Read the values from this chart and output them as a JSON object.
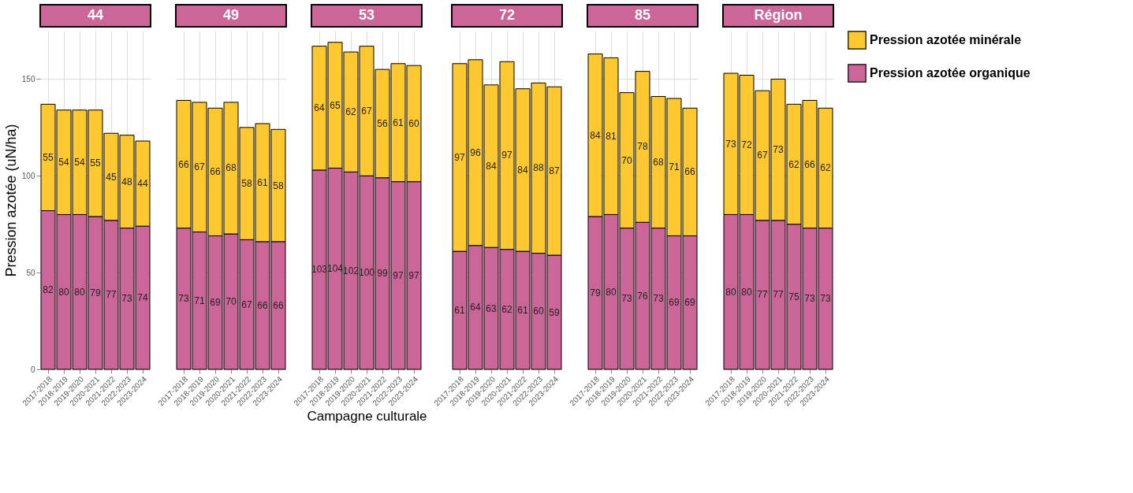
{
  "chart_data": [
    {
      "type": "bar",
      "title": "44",
      "ylabel": "Pression azotée (uN/ha)",
      "categories": [
        "2017-2018",
        "2018-2019",
        "2019-2020",
        "2020-2021",
        "2021-2022",
        "2022-2023",
        "2023-2024"
      ],
      "stacked": true,
      "data_labels": true,
      "ylim": [
        0,
        175
      ],
      "yticks": [
        0,
        50,
        100,
        150
      ],
      "grid": true,
      "legend": false,
      "series": [
        {
          "color": "#cc6699",
          "values": [
            82,
            80,
            80,
            79,
            77,
            73,
            74
          ]
        },
        {
          "color": "#fdc830",
          "values": [
            55,
            54,
            54,
            55,
            45,
            48,
            44
          ]
        }
      ]
    },
    {
      "type": "bar",
      "title": "49",
      "categories": [
        "2017-2018",
        "2018-2019",
        "2019-2020",
        "2020-2021",
        "2021-2022",
        "2022-2023",
        "2023-2024"
      ],
      "stacked": true,
      "data_labels": true,
      "ylim": [
        0,
        175
      ],
      "yticks": [
        0,
        50,
        100,
        150
      ],
      "grid": true,
      "legend": false,
      "tick_labels": "x",
      "series": [
        {
          "color": "#cc6699",
          "values": [
            73,
            71,
            69,
            70,
            67,
            66,
            66
          ]
        },
        {
          "color": "#fdc830",
          "values": [
            66,
            67,
            66,
            68,
            58,
            61,
            58
          ]
        }
      ]
    },
    {
      "type": "bar",
      "title": "53",
      "xlabel": "Campagne culturale",
      "categories": [
        "2017-2018",
        "2018-2019",
        "2019-2020",
        "2020-2021",
        "2021-2022",
        "2022-2023",
        "2023-2024"
      ],
      "stacked": true,
      "data_labels": true,
      "ylim": [
        0,
        175
      ],
      "yticks": [
        0,
        50,
        100,
        150
      ],
      "grid": true,
      "legend": false,
      "tick_labels": "x",
      "series": [
        {
          "color": "#cc6699",
          "values": [
            103,
            104,
            102,
            100,
            99,
            97,
            97
          ]
        },
        {
          "color": "#fdc830",
          "values": [
            64,
            65,
            62,
            67,
            56,
            61,
            60
          ]
        }
      ]
    },
    {
      "type": "bar",
      "title": "72",
      "categories": [
        "2017-2018",
        "2018-2019",
        "2019-2020",
        "2020-2021",
        "2021-2022",
        "2022-2023",
        "2023-2024"
      ],
      "stacked": true,
      "data_labels": true,
      "ylim": [
        0,
        175
      ],
      "yticks": [
        0,
        50,
        100,
        150
      ],
      "grid": true,
      "legend": false,
      "tick_labels": "x",
      "series": [
        {
          "color": "#cc6699",
          "values": [
            61,
            64,
            63,
            62,
            61,
            60,
            59
          ]
        },
        {
          "color": "#fdc830",
          "values": [
            97,
            96,
            84,
            97,
            84,
            88,
            87
          ]
        }
      ]
    },
    {
      "type": "bar",
      "title": "85",
      "categories": [
        "2017-2018",
        "2018-2019",
        "2019-2020",
        "2020-2021",
        "2021-2022",
        "2022-2023",
        "2023-2024"
      ],
      "stacked": true,
      "data_labels": true,
      "ylim": [
        0,
        175
      ],
      "yticks": [
        0,
        50,
        100,
        150
      ],
      "grid": true,
      "legend": false,
      "tick_labels": "x",
      "series": [
        {
          "color": "#cc6699",
          "values": [
            79,
            80,
            73,
            76,
            73,
            69,
            69
          ]
        },
        {
          "color": "#fdc830",
          "values": [
            84,
            81,
            70,
            78,
            68,
            71,
            66
          ]
        }
      ]
    },
    {
      "type": "bar",
      "title": "Région",
      "categories": [
        "2017-2018",
        "2018-2019",
        "2019-2020",
        "2020-2021",
        "2021-2022",
        "2022-2023",
        "2023-2024"
      ],
      "stacked": true,
      "data_labels": true,
      "ylim": [
        0,
        175
      ],
      "yticks": [
        0,
        50,
        100,
        150
      ],
      "grid": true,
      "legend": "right",
      "tick_labels": "x",
      "series": [
        {
          "name": "Pression azotée organique",
          "color": "#cc6699",
          "values": [
            80,
            80,
            77,
            77,
            75,
            73,
            73
          ]
        },
        {
          "name": "Pression azotée minérale",
          "color": "#fdc830",
          "values": [
            73,
            72,
            67,
            73,
            62,
            66,
            62
          ]
        }
      ]
    }
  ]
}
